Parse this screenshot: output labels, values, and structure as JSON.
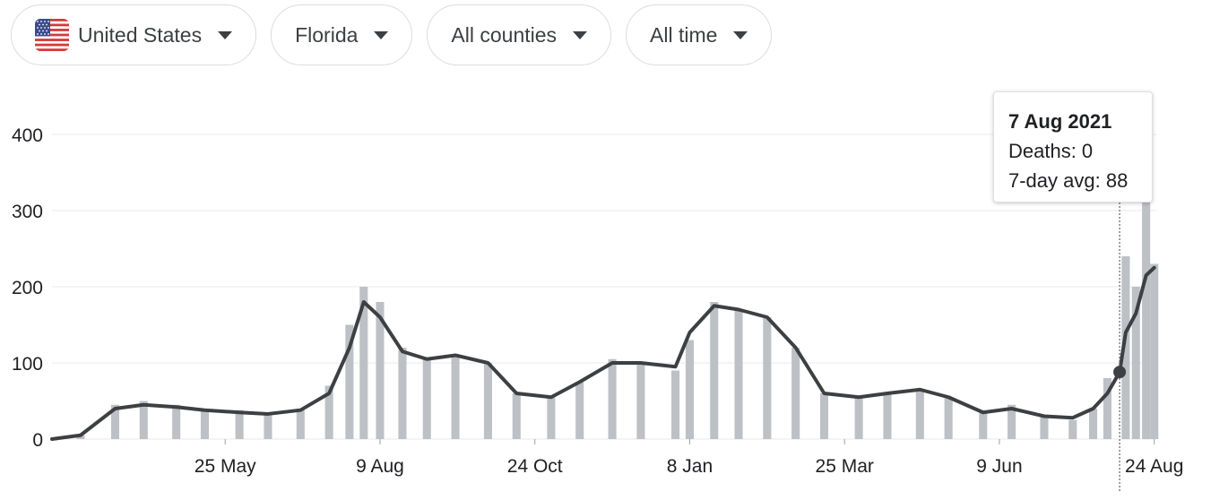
{
  "filters": {
    "country": {
      "label": "United States",
      "flag": "us-flag-icon"
    },
    "state": {
      "label": "Florida"
    },
    "county": {
      "label": "All counties"
    },
    "time": {
      "label": "All time"
    }
  },
  "tooltip": {
    "date": "7 Aug 2021",
    "deaths_label": "Deaths: 0",
    "avg_label": "7-day avg: 88",
    "deaths": 0,
    "avg": 88
  },
  "colors": {
    "bars": "#bdc1c6",
    "line": "#3c4043",
    "grid": "#e8eaed",
    "text": "#202124"
  },
  "chart_data": {
    "type": "bar",
    "title": "",
    "xlabel": "",
    "ylabel": "",
    "ylim": [
      0,
      400
    ],
    "y_ticks": [
      0,
      100,
      200,
      300,
      400
    ],
    "x_ticks": [
      {
        "date": "2020-05-25",
        "label": "25 May"
      },
      {
        "date": "2020-08-09",
        "label": "9 Aug"
      },
      {
        "date": "2020-10-24",
        "label": "24 Oct"
      },
      {
        "date": "2021-01-08",
        "label": "8 Jan"
      },
      {
        "date": "2021-03-25",
        "label": "25 Mar"
      },
      {
        "date": "2021-06-09",
        "label": "9 Jun"
      },
      {
        "date": "2021-08-24",
        "label": "24 Aug"
      }
    ],
    "x_range": [
      "2020-03-01",
      "2021-08-25"
    ],
    "grid": true,
    "series": [
      {
        "name": "",
        "kind": "bar",
        "x": [
          "2020-03-01",
          "2020-03-15",
          "2020-04-01",
          "2020-04-15",
          "2020-05-01",
          "2020-05-15",
          "2020-06-01",
          "2020-06-15",
          "2020-07-01",
          "2020-07-15",
          "2020-07-25",
          "2020-08-01",
          "2020-08-09",
          "2020-08-20",
          "2020-09-01",
          "2020-09-15",
          "2020-10-01",
          "2020-10-15",
          "2020-11-01",
          "2020-11-15",
          "2020-12-01",
          "2020-12-15",
          "2021-01-01",
          "2021-01-08",
          "2021-01-20",
          "2021-02-01",
          "2021-02-15",
          "2021-03-01",
          "2021-03-15",
          "2021-04-01",
          "2021-04-15",
          "2021-05-01",
          "2021-05-15",
          "2021-06-01",
          "2021-06-15",
          "2021-07-01",
          "2021-07-15",
          "2021-07-25",
          "2021-08-01",
          "2021-08-07",
          "2021-08-10",
          "2021-08-15",
          "2021-08-20",
          "2021-08-24"
        ],
        "values": [
          0,
          5,
          45,
          50,
          45,
          40,
          38,
          35,
          40,
          70,
          150,
          200,
          180,
          120,
          105,
          110,
          100,
          60,
          55,
          75,
          105,
          100,
          90,
          130,
          180,
          170,
          160,
          120,
          60,
          55,
          60,
          65,
          55,
          35,
          45,
          30,
          25,
          40,
          80,
          0,
          240,
          200,
          320,
          230
        ]
      },
      {
        "name": "",
        "kind": "line",
        "label": "7-day avg",
        "x": [
          "2020-03-01",
          "2020-03-15",
          "2020-04-01",
          "2020-04-15",
          "2020-05-01",
          "2020-05-15",
          "2020-06-01",
          "2020-06-15",
          "2020-07-01",
          "2020-07-15",
          "2020-07-25",
          "2020-08-01",
          "2020-08-09",
          "2020-08-20",
          "2020-09-01",
          "2020-09-15",
          "2020-10-01",
          "2020-10-15",
          "2020-11-01",
          "2020-11-15",
          "2020-12-01",
          "2020-12-15",
          "2021-01-01",
          "2021-01-08",
          "2021-01-20",
          "2021-02-01",
          "2021-02-15",
          "2021-03-01",
          "2021-03-15",
          "2021-04-01",
          "2021-04-15",
          "2021-05-01",
          "2021-05-15",
          "2021-06-01",
          "2021-06-15",
          "2021-07-01",
          "2021-07-15",
          "2021-07-25",
          "2021-08-01",
          "2021-08-07",
          "2021-08-10",
          "2021-08-15",
          "2021-08-20",
          "2021-08-24"
        ],
        "values": [
          0,
          5,
          40,
          45,
          42,
          38,
          35,
          33,
          38,
          60,
          120,
          180,
          160,
          115,
          105,
          110,
          100,
          60,
          55,
          75,
          100,
          100,
          95,
          140,
          175,
          170,
          160,
          120,
          60,
          55,
          60,
          65,
          55,
          35,
          40,
          30,
          28,
          40,
          60,
          88,
          140,
          165,
          215,
          225
        ]
      }
    ]
  }
}
